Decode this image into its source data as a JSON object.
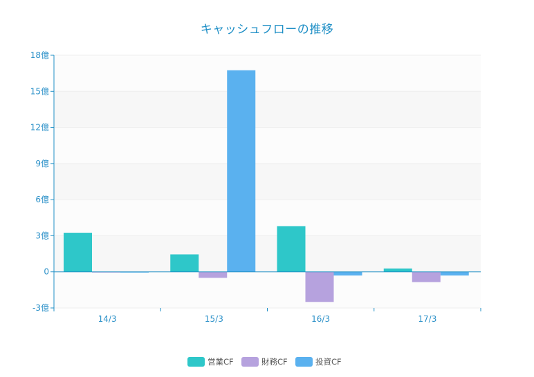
{
  "chart_data": {
    "type": "bar",
    "title": "キャッシュフローの推移",
    "categories": [
      "14/3",
      "15/3",
      "16/3",
      "17/3"
    ],
    "series": [
      {
        "name": "営業CF",
        "color": "#2ec7c9",
        "values": [
          3.25,
          1.45,
          3.8,
          0.28
        ]
      },
      {
        "name": "財務CF",
        "color": "#b6a2de",
        "values": [
          -0.03,
          -0.5,
          -2.5,
          -0.85
        ]
      },
      {
        "name": "投資CF",
        "color": "#5ab1ef",
        "values": [
          -0.03,
          16.75,
          -0.3,
          -0.3
        ]
      }
    ],
    "ylim": [
      -3,
      18
    ],
    "yticks": [
      -3,
      0,
      3,
      6,
      9,
      12,
      15,
      18
    ],
    "ytick_labels": [
      "-3億",
      "0",
      "3億",
      "6億",
      "9億",
      "12億",
      "15億",
      "18億"
    ],
    "xlabel": "",
    "ylabel": "",
    "grid": true,
    "legend_position": "bottom-center"
  },
  "colors": {
    "axis": "#1f8fc6",
    "grid_band": "#f7f7f7",
    "title": "#1f8fc6"
  }
}
